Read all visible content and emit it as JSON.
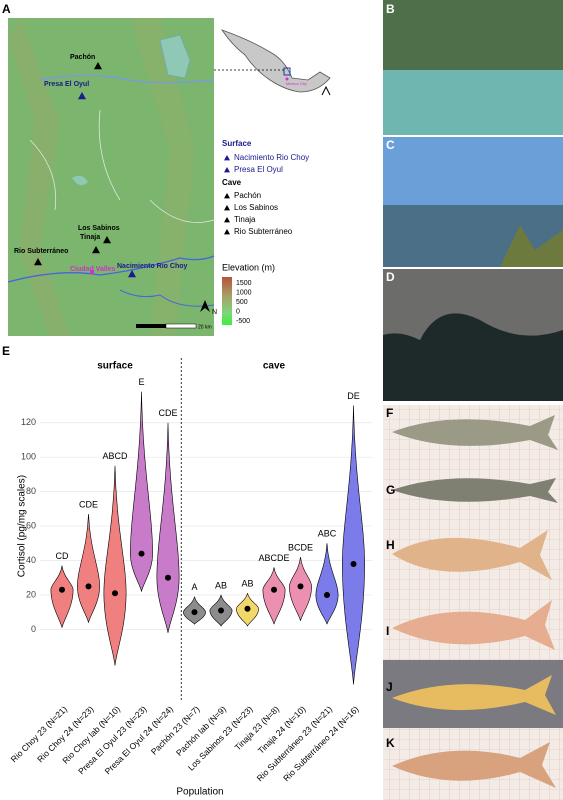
{
  "panel_labels": [
    "A",
    "B",
    "C",
    "D",
    "E",
    "F",
    "G",
    "H",
    "I",
    "J",
    "K"
  ],
  "map": {
    "sites": [
      "Pachón",
      "Presa El Oyul",
      "Los Sabinos",
      "Tinaja",
      "Rio Subterráneo",
      "Nacimiento Rio Choy"
    ],
    "city": "Ciudad Valles",
    "inset_label": "Mexico City",
    "legend": {
      "surface_title": "Surface",
      "surface": [
        "Nacimiento Rio Choy",
        "Presa El Oyul"
      ],
      "cave_title": "Cave",
      "cave": [
        "Pachón",
        "Los Sabinos",
        "Tinaja",
        "Rio Subterráneo"
      ]
    },
    "elevation": {
      "title": "Elevation (m)",
      "ticks": [
        1500,
        1000,
        500,
        0,
        -500
      ]
    },
    "scale": "20 km",
    "north": "N"
  },
  "chart_data": {
    "type": "violin",
    "groups": [
      "surface",
      "cave"
    ],
    "categories": [
      "Rio Choy 23 (N=21)",
      "Rio Choy 24 (N=23)",
      "Rio Choy lab (N=10)",
      "Presa El Oyul 23 (N=23)",
      "Presa El Oyul 24 (N=24)",
      "Pachón 23 (N=7)",
      "Pachón lab (N=9)",
      "Los Sabinos 23 (N=23)",
      "Tinaja 23 (N=8)",
      "Tinaja 24 (N=10)",
      "Rio Subterráneo 23 (N=21)",
      "Rio Subterráneo 24 (N=16)"
    ],
    "medians": [
      23,
      25,
      21,
      44,
      30,
      10,
      11,
      12,
      23,
      25,
      20,
      38
    ],
    "mins": [
      1,
      4,
      -21,
      22,
      -2,
      3,
      2,
      2,
      3,
      5,
      3,
      -32
    ],
    "maxs": [
      37,
      67,
      95,
      138,
      120,
      19,
      20,
      21,
      36,
      42,
      50,
      130
    ],
    "letters": [
      "CD",
      "CDE",
      "ABCD",
      "E",
      "CDE",
      "A",
      "AB",
      "AB",
      "ABCDE",
      "BCDE",
      "ABC",
      "DE"
    ],
    "colors": [
      "#f08080",
      "#f08080",
      "#f08080",
      "#c77bc9",
      "#c77bc9",
      "#8c8c8c",
      "#8c8c8c",
      "#f2d86a",
      "#ec8fb0",
      "#ec8fb0",
      "#7b7bea",
      "#7b7bea"
    ],
    "x_label": "Population",
    "y_label": "Cortisol (pg/mg scales)",
    "ylim": [
      -41,
      146
    ],
    "yticks": [
      0,
      20,
      40,
      60,
      80,
      100,
      120
    ],
    "grid": true
  }
}
